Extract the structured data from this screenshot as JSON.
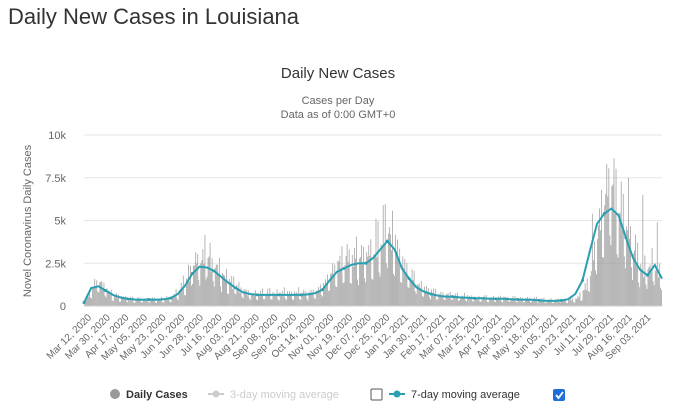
{
  "page": {
    "title": "Daily New Cases in Louisiana"
  },
  "chart_data": {
    "type": "bar",
    "title": "Daily New Cases",
    "subtitle_lines": [
      "Cases per Day",
      "Data as of 0:00 GMT+0"
    ],
    "ylabel": "Novel Coronavirus Daily Cases",
    "xlabel": "",
    "ylim": [
      0,
      10000
    ],
    "y_ticks": [
      {
        "value": 0,
        "label": "0"
      },
      {
        "value": 2500,
        "label": "2.5k"
      },
      {
        "value": 5000,
        "label": "5k"
      },
      {
        "value": 7500,
        "label": "7.5k"
      },
      {
        "value": 10000,
        "label": "10k"
      }
    ],
    "x_tick_labels": [
      "Mar 12, 2020",
      "Mar 30, 2020",
      "Apr 17, 2020",
      "May 05, 2020",
      "May 23, 2020",
      "Jun 10, 2020",
      "Jun 28, 2020",
      "Jul 16, 2020",
      "Aug 03, 2020",
      "Aug 21, 2020",
      "Sep 08, 2020",
      "Sep 26, 2020",
      "Oct 14, 2020",
      "Nov 01, 2020",
      "Nov 19, 2020",
      "Dec 07, 2020",
      "Dec 25, 2020",
      "Jan 12, 2021",
      "Jan 30, 2021",
      "Feb 17, 2021",
      "Mar 07, 2021",
      "Mar 25, 2021",
      "Apr 12, 2021",
      "Apr 30, 2021",
      "May 18, 2021",
      "Jun 05, 2021",
      "Jun 23, 2021",
      "Jul 11, 2021",
      "Jul 29, 2021",
      "Aug 16, 2021",
      "Sep 03, 2021"
    ],
    "series": [
      {
        "name": "Daily Cases",
        "kind": "bar",
        "color": "#999999",
        "visible": true,
        "weekly_values": [
          200,
          900,
          1300,
          900,
          600,
          450,
          400,
          380,
          350,
          400,
          350,
          380,
          450,
          700,
          1300,
          2100,
          2500,
          2700,
          2200,
          1700,
          1300,
          1100,
          800,
          650,
          600,
          700,
          650,
          650,
          700,
          650,
          700,
          650,
          750,
          1000,
          1600,
          2100,
          2400,
          2500,
          2600,
          2700,
          2900,
          3300,
          4000,
          3400,
          2300,
          1700,
          1200,
          900,
          750,
          650,
          600,
          600,
          550,
          500,
          450,
          450,
          450,
          400,
          450,
          400,
          400,
          350,
          400,
          350,
          300,
          300,
          350,
          300,
          350,
          600,
          1400,
          3300,
          5500,
          6200,
          5600,
          4300,
          3200,
          2300,
          1900,
          2200,
          1500
        ]
      },
      {
        "name": "3-day moving average",
        "kind": "line",
        "color": "#cccccc",
        "visible": false
      },
      {
        "name": "7-day moving average",
        "kind": "line",
        "color": "#2a9fb1",
        "visible": true,
        "weekly_values": [
          200,
          1050,
          1150,
          900,
          650,
          500,
          420,
          380,
          370,
          380,
          370,
          390,
          460,
          700,
          1200,
          1900,
          2300,
          2250,
          2050,
          1700,
          1350,
          1050,
          800,
          700,
          650,
          650,
          650,
          650,
          650,
          650,
          650,
          680,
          750,
          950,
          1500,
          2000,
          2200,
          2400,
          2500,
          2500,
          2800,
          3300,
          3800,
          3300,
          2200,
          1600,
          1100,
          850,
          700,
          600,
          550,
          550,
          500,
          480,
          450,
          450,
          430,
          420,
          420,
          400,
          380,
          360,
          360,
          330,
          300,
          300,
          320,
          400,
          700,
          1500,
          3200,
          4800,
          5400,
          5700,
          5300,
          4000,
          2800,
          2100,
          1800,
          2400,
          1600
        ]
      }
    ],
    "spike_days": [
      {
        "date_index": 75,
        "value": 7500
      },
      {
        "date_index": 77,
        "value": 6500
      },
      {
        "date_index": 79,
        "value": 4900
      },
      {
        "date_index": 70,
        "value": 5400
      },
      {
        "date_index": 41,
        "value": 5900
      },
      {
        "date_index": 40,
        "value": 5100
      }
    ],
    "legend": [
      {
        "label": "Daily Cases",
        "active": true,
        "checkbox": false
      },
      {
        "label": "3-day moving average",
        "active": false,
        "checkbox": true,
        "checked": false
      },
      {
        "label": "7-day moving average",
        "active": true,
        "checkbox": true,
        "checked": true
      }
    ],
    "legend_position": "bottom-center",
    "grid": true
  }
}
